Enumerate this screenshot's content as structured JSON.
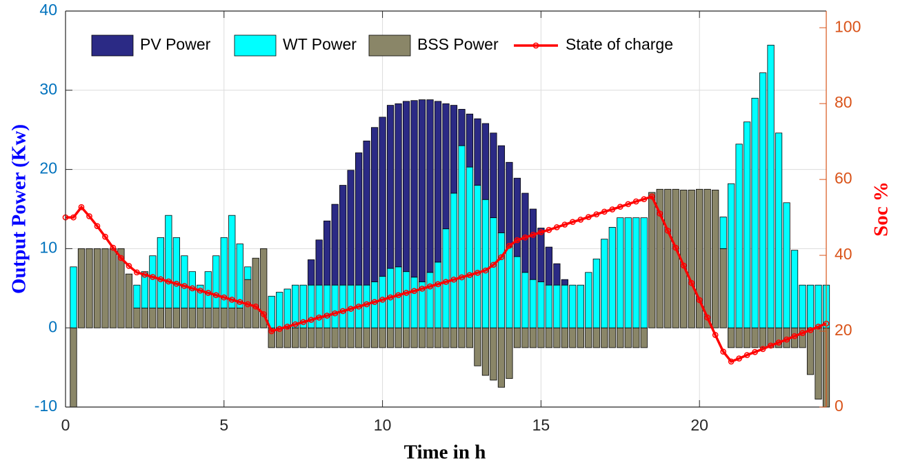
{
  "chart_data": {
    "type": "bar",
    "stacked": true,
    "xlabel": "Time in h",
    "ylabel": "Output Power (Kw)",
    "y2label": "Soc %",
    "xlim": [
      0,
      24
    ],
    "xticks": [
      0,
      5,
      10,
      15,
      20
    ],
    "ylim": [
      -10,
      40
    ],
    "yticks": [
      -10,
      0,
      10,
      20,
      30,
      40
    ],
    "y2lim": [
      0,
      104.4
    ],
    "y2ticks": [
      0,
      20,
      40,
      60,
      80,
      100
    ],
    "grid": true,
    "legend": "top",
    "x": [
      0,
      0.25,
      0.5,
      0.75,
      1,
      1.25,
      1.5,
      1.75,
      2,
      2.25,
      2.5,
      2.75,
      3,
      3.25,
      3.5,
      3.75,
      4,
      4.25,
      4.5,
      4.75,
      5,
      5.25,
      5.5,
      5.75,
      6,
      6.25,
      6.5,
      6.75,
      7,
      7.25,
      7.5,
      7.75,
      8,
      8.25,
      8.5,
      8.75,
      9,
      9.25,
      9.5,
      9.75,
      10,
      10.25,
      10.5,
      10.75,
      11,
      11.25,
      11.5,
      11.75,
      12,
      12.25,
      12.5,
      12.75,
      13,
      13.25,
      13.5,
      13.75,
      14,
      14.25,
      14.5,
      14.75,
      15,
      15.25,
      15.5,
      15.75,
      16,
      16.25,
      16.5,
      16.75,
      17,
      17.25,
      17.5,
      17.75,
      18,
      18.25,
      18.5,
      18.75,
      19,
      19.25,
      19.5,
      19.75,
      20,
      20.25,
      20.5,
      20.75,
      21,
      21.25,
      21.5,
      21.75,
      22,
      22.25,
      22.5,
      22.75,
      23,
      23.25,
      23.5,
      23.75,
      24
    ],
    "series": [
      {
        "name": "PV Power",
        "color": "#2b2a85",
        "values": [
          null,
          0,
          0,
          0,
          0,
          0,
          0,
          0,
          0,
          0,
          0,
          0,
          0,
          0,
          0,
          0,
          0,
          0,
          0,
          0,
          0,
          0,
          0,
          0,
          0,
          0,
          0,
          0,
          0,
          0,
          0,
          3.2,
          5.7,
          8.1,
          10.2,
          12.6,
          14.5,
          16.7,
          18.2,
          19.5,
          20.1,
          20.6,
          20.6,
          21.5,
          22.3,
          23.0,
          21.8,
          20.3,
          15.8,
          11.1,
          4.6,
          6.7,
          8.4,
          9.6,
          10.7,
          11.0,
          10.7,
          9.9,
          10.0,
          8.9,
          6.8,
          4.8,
          2.7,
          0.7,
          0,
          0,
          0,
          0,
          0,
          0,
          0,
          0,
          0,
          0,
          0,
          0,
          0,
          0,
          0,
          0,
          0,
          0,
          0,
          0,
          0,
          0,
          0,
          0,
          0,
          0,
          0,
          0,
          0,
          0,
          0,
          0,
          0
        ]
      },
      {
        "name": "WT Power",
        "color": "#00ffff",
        "values": [
          null,
          7.7,
          0,
          0,
          0,
          0,
          0,
          0,
          0,
          2.9,
          4.6,
          6.6,
          8.9,
          11.7,
          8.9,
          6.6,
          4.6,
          2.9,
          4.6,
          6.6,
          8.9,
          11.7,
          8.1,
          1.6,
          0,
          0,
          4.0,
          4.5,
          4.9,
          5.4,
          5.4,
          5.4,
          5.4,
          5.4,
          5.4,
          5.4,
          5.4,
          5.4,
          5.4,
          5.8,
          6.5,
          7.5,
          7.7,
          7.1,
          6.4,
          5.8,
          7.0,
          8.3,
          12.5,
          17.0,
          23.0,
          20.3,
          18.0,
          16.2,
          13.9,
          12.0,
          10.2,
          9.0,
          7.0,
          6.1,
          5.8,
          5.4,
          5.4,
          5.4,
          5.4,
          5.4,
          7.0,
          8.7,
          11.2,
          12.7,
          13.9,
          13.9,
          13.9,
          13.9,
          0,
          0,
          0,
          0,
          0,
          0,
          0,
          0,
          0,
          4.0,
          18.2,
          23.2,
          26.0,
          29.0,
          32.2,
          35.7,
          24.6,
          15.8,
          9.8,
          5.4,
          5.4,
          5.4,
          5.4
        ]
      },
      {
        "name": "BSS Power",
        "color": "#8a8668",
        "values": [
          null,
          -10,
          10,
          10,
          10,
          10,
          10,
          10,
          6.8,
          2.5,
          2.5,
          2.5,
          2.5,
          2.5,
          2.5,
          2.5,
          2.5,
          2.5,
          2.5,
          2.5,
          2.5,
          2.5,
          2.5,
          6.1,
          8.8,
          10,
          -2.5,
          -2.5,
          -2.5,
          -2.5,
          -2.5,
          -2.5,
          -2.5,
          -2.5,
          -2.5,
          -2.5,
          -2.5,
          -2.5,
          -2.5,
          -2.5,
          -2.5,
          -2.5,
          -2.5,
          -2.5,
          -2.5,
          -2.5,
          -2.5,
          -2.5,
          -2.5,
          -2.5,
          -2.5,
          -2.5,
          -4.8,
          -6.0,
          -6.6,
          -7.5,
          -6.4,
          -2.5,
          -2.5,
          -2.5,
          -2.5,
          -2.5,
          -2.5,
          -2.5,
          -2.5,
          -2.5,
          -2.5,
          -2.5,
          -2.5,
          -2.5,
          -2.5,
          -2.5,
          -2.5,
          -2.5,
          17.1,
          17.5,
          17.5,
          17.5,
          17.4,
          17.4,
          17.5,
          17.5,
          17.4,
          10,
          -2.5,
          -2.5,
          -2.5,
          -2.5,
          -2.5,
          -2.5,
          -2.5,
          -2.5,
          -2.5,
          -2.5,
          -5.9,
          -9.0,
          -10
        ]
      },
      {
        "name": "State of charge",
        "color": "#ff0000",
        "type": "line",
        "axis": "y2",
        "values": [
          50,
          50,
          52.7,
          50.3,
          47.7,
          44.9,
          42,
          39.3,
          37.2,
          35.5,
          34.9,
          34.3,
          33.7,
          33.1,
          32.5,
          31.9,
          31.3,
          30.7,
          30.1,
          29.5,
          28.9,
          28.3,
          27.7,
          27.1,
          26.5,
          24.5,
          20.0,
          20.6,
          21.2,
          21.8,
          22.4,
          23.0,
          23.6,
          24.1,
          24.7,
          25.3,
          25.9,
          26.5,
          27.1,
          27.7,
          28.3,
          28.9,
          29.5,
          30.1,
          30.6,
          31.2,
          31.8,
          32.4,
          33.0,
          33.6,
          34.2,
          34.8,
          35.4,
          36.0,
          37.5,
          39.5,
          42.5,
          44.0,
          44.7,
          45.4,
          46.1,
          46.7,
          47.4,
          48.1,
          48.8,
          49.4,
          50.1,
          50.8,
          51.5,
          52.1,
          52.8,
          53.5,
          54.2,
          54.8,
          55.5,
          51,
          46.5,
          42,
          37.3,
          32.7,
          28.2,
          23.6,
          19.0,
          14.6,
          12.0,
          12.8,
          13.7,
          14.5,
          15.3,
          16.2,
          17.0,
          17.8,
          18.7,
          19.5,
          20.3,
          21.2,
          22.0
        ]
      }
    ]
  }
}
